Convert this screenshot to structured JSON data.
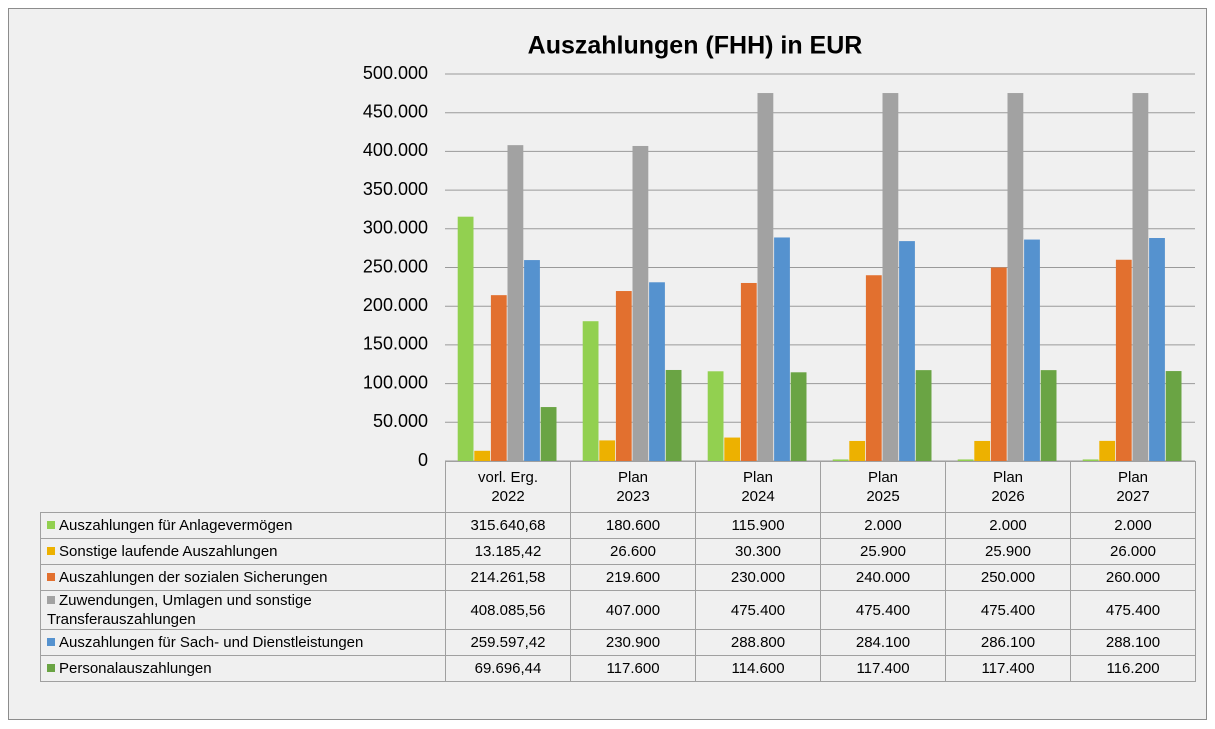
{
  "chart_data": {
    "type": "bar",
    "title": "Auszahlungen (FHH) in EUR",
    "categories": [
      "vorl. Erg.\n2022",
      "Plan\n2023",
      "Plan\n2024",
      "Plan\n2025",
      "Plan\n2026",
      "Plan\n2027"
    ],
    "series": [
      {
        "name": "Auszahlungen für Anlagevermögen",
        "color": "#92d050",
        "values": [
          315640.68,
          180600,
          115900,
          2000,
          2000,
          2000
        ],
        "value_labels": [
          "315.640,68",
          "180.600",
          "115.900",
          "2.000",
          "2.000",
          "2.000"
        ]
      },
      {
        "name": "Sonstige laufende Auszahlungen",
        "color": "#edb100",
        "values": [
          13185.42,
          26600,
          30300,
          25900,
          25900,
          26000
        ],
        "value_labels": [
          "13.185,42",
          "26.600",
          "30.300",
          "25.900",
          "25.900",
          "26.000"
        ]
      },
      {
        "name": "Auszahlungen der sozialen Sicherungen",
        "color": "#e2702f",
        "values": [
          214261.58,
          219600,
          230000,
          240000,
          250000,
          260000
        ],
        "value_labels": [
          "214.261,58",
          "219.600",
          "230.000",
          "240.000",
          "250.000",
          "260.000"
        ]
      },
      {
        "name": "Zuwendungen, Umlagen und sonstige Transferauszahlungen",
        "color": "#a2a2a2",
        "values": [
          408085.56,
          407000,
          475400,
          475400,
          475400,
          475400
        ],
        "value_labels": [
          "408.085,56",
          "407.000",
          "475.400",
          "475.400",
          "475.400",
          "475.400"
        ]
      },
      {
        "name": "Auszahlungen für Sach- und Dienstleistungen",
        "color": "#5592cf",
        "values": [
          259597.42,
          230900,
          288800,
          284100,
          286100,
          288100
        ],
        "value_labels": [
          "259.597,42",
          "230.900",
          "288.800",
          "284.100",
          "286.100",
          "288.100"
        ]
      },
      {
        "name": "Personalauszahlungen",
        "color": "#6aa444",
        "values": [
          69696.44,
          117600,
          114600,
          117400,
          117400,
          116200
        ],
        "value_labels": [
          "69.696,44",
          "117.600",
          "114.600",
          "117.400",
          "117.400",
          "116.200"
        ]
      }
    ],
    "ylim": [
      0,
      500000
    ],
    "yticks": [
      0,
      {
        "value": 50000,
        "label": "50.000"
      },
      {
        "value": 100000,
        "label": "100.000"
      },
      {
        "value": 150000,
        "label": "150.000"
      },
      {
        "value": 200000,
        "label": "200.000"
      },
      {
        "value": 250000,
        "label": "250.000"
      },
      {
        "value": 300000,
        "label": "300.000"
      },
      {
        "value": 350000,
        "label": "350.000"
      },
      {
        "value": 400000,
        "label": "400.000"
      },
      {
        "value": 450000,
        "label": "450.000"
      },
      {
        "value": 500000,
        "label": "500.000"
      }
    ],
    "grid": true
  }
}
